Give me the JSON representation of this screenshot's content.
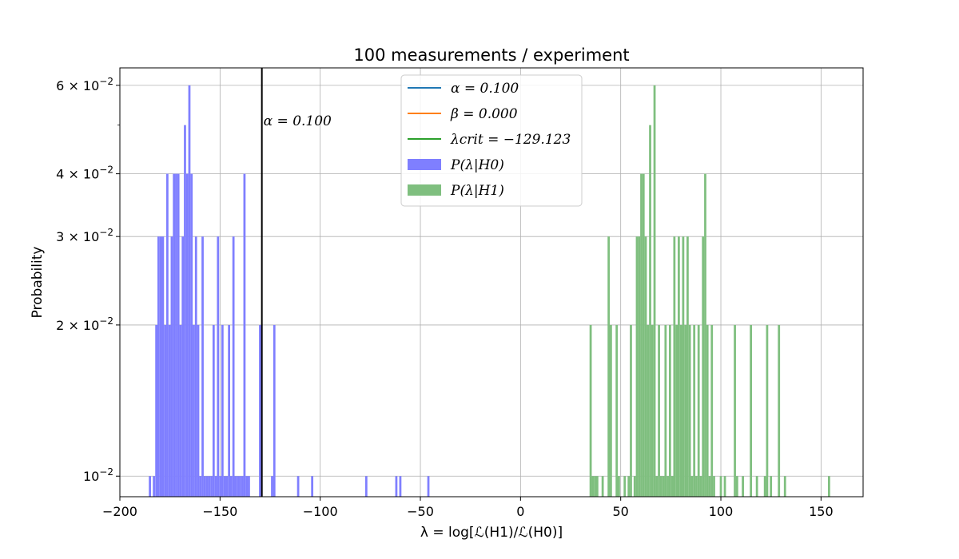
{
  "chart_data": {
    "type": "bar",
    "title": "100 measurements / experiment",
    "xlabel": "λ = log[ℒ(H1)/ℒ(H0)]",
    "ylabel": "Probability",
    "xlim": [
      -200,
      171
    ],
    "ylim": [
      0.0091,
      0.065
    ],
    "yscale": "log",
    "grid": true,
    "legend_position": "top-center",
    "x_ticks": [
      {
        "value": -200,
        "label": "−200"
      },
      {
        "value": -150,
        "label": "−150"
      },
      {
        "value": -100,
        "label": "−100"
      },
      {
        "value": -50,
        "label": "−50"
      },
      {
        "value": 0,
        "label": "0"
      },
      {
        "value": 50,
        "label": "50"
      },
      {
        "value": 100,
        "label": "100"
      },
      {
        "value": 150,
        "label": "150"
      }
    ],
    "y_ticks": [
      {
        "value": 0.01,
        "mantissa": "",
        "exp": "−2"
      },
      {
        "value": 0.02,
        "mantissa": "2",
        "exp": "−2"
      },
      {
        "value": 0.03,
        "mantissa": "3",
        "exp": "−2"
      },
      {
        "value": 0.04,
        "mantissa": "4",
        "exp": "−2"
      },
      {
        "value": 0.06,
        "mantissa": "6",
        "exp": "−2"
      }
    ],
    "bin_width": 1.1,
    "series": [
      {
        "name": "P(λ|H0)",
        "color": "#7f7fff",
        "bars": [
          {
            "x": -185.0,
            "y": 0.01
          },
          {
            "x": -183.0,
            "y": 0.01
          },
          {
            "x": -181.8,
            "y": 0.02
          },
          {
            "x": -180.7,
            "y": 0.03
          },
          {
            "x": -179.6,
            "y": 0.03
          },
          {
            "x": -178.5,
            "y": 0.03
          },
          {
            "x": -177.4,
            "y": 0.02
          },
          {
            "x": -176.3,
            "y": 0.04
          },
          {
            "x": -175.2,
            "y": 0.02
          },
          {
            "x": -174.1,
            "y": 0.03
          },
          {
            "x": -173.0,
            "y": 0.04
          },
          {
            "x": -171.9,
            "y": 0.04
          },
          {
            "x": -170.8,
            "y": 0.04
          },
          {
            "x": -169.7,
            "y": 0.02
          },
          {
            "x": -168.6,
            "y": 0.03
          },
          {
            "x": -167.5,
            "y": 0.05
          },
          {
            "x": -166.4,
            "y": 0.04
          },
          {
            "x": -165.3,
            "y": 0.06
          },
          {
            "x": -164.2,
            "y": 0.04
          },
          {
            "x": -163.1,
            "y": 0.02
          },
          {
            "x": -162.0,
            "y": 0.03
          },
          {
            "x": -160.9,
            "y": 0.02
          },
          {
            "x": -159.8,
            "y": 0.01
          },
          {
            "x": -158.7,
            "y": 0.03
          },
          {
            "x": -157.6,
            "y": 0.01
          },
          {
            "x": -156.5,
            "y": 0.01
          },
          {
            "x": -155.4,
            "y": 0.01
          },
          {
            "x": -154.3,
            "y": 0.01
          },
          {
            "x": -153.2,
            "y": 0.02
          },
          {
            "x": -152.1,
            "y": 0.01
          },
          {
            "x": -151.0,
            "y": 0.03
          },
          {
            "x": -149.9,
            "y": 0.01
          },
          {
            "x": -148.8,
            "y": 0.02
          },
          {
            "x": -147.7,
            "y": 0.01
          },
          {
            "x": -146.6,
            "y": 0.01
          },
          {
            "x": -145.5,
            "y": 0.02
          },
          {
            "x": -144.4,
            "y": 0.01
          },
          {
            "x": -143.3,
            "y": 0.03
          },
          {
            "x": -142.2,
            "y": 0.01
          },
          {
            "x": -141.1,
            "y": 0.01
          },
          {
            "x": -140.0,
            "y": 0.01
          },
          {
            "x": -138.9,
            "y": 0.01
          },
          {
            "x": -137.8,
            "y": 0.04
          },
          {
            "x": -136.7,
            "y": 0.01
          },
          {
            "x": -135.6,
            "y": 0.01
          },
          {
            "x": -130.0,
            "y": 0.02
          },
          {
            "x": -124.0,
            "y": 0.01
          },
          {
            "x": -122.9,
            "y": 0.02
          },
          {
            "x": -111.0,
            "y": 0.01
          },
          {
            "x": -104.0,
            "y": 0.01
          },
          {
            "x": -77.0,
            "y": 0.01
          },
          {
            "x": -62.0,
            "y": 0.01
          },
          {
            "x": -60.0,
            "y": 0.01
          },
          {
            "x": -46.0,
            "y": 0.01
          }
        ]
      },
      {
        "name": "P(λ|H1)",
        "color": "#7fbf7f",
        "bars": [
          {
            "x": 35.0,
            "y": 0.02
          },
          {
            "x": 36.1,
            "y": 0.01
          },
          {
            "x": 37.2,
            "y": 0.01
          },
          {
            "x": 38.3,
            "y": 0.01
          },
          {
            "x": 41.0,
            "y": 0.01
          },
          {
            "x": 44.0,
            "y": 0.03
          },
          {
            "x": 45.1,
            "y": 0.02
          },
          {
            "x": 48.0,
            "y": 0.02
          },
          {
            "x": 49.1,
            "y": 0.01
          },
          {
            "x": 52.0,
            "y": 0.01
          },
          {
            "x": 54.0,
            "y": 0.01
          },
          {
            "x": 55.1,
            "y": 0.02
          },
          {
            "x": 57.0,
            "y": 0.01
          },
          {
            "x": 58.1,
            "y": 0.03
          },
          {
            "x": 59.2,
            "y": 0.03
          },
          {
            "x": 60.3,
            "y": 0.04
          },
          {
            "x": 61.4,
            "y": 0.04
          },
          {
            "x": 62.5,
            "y": 0.03
          },
          {
            "x": 63.6,
            "y": 0.02
          },
          {
            "x": 64.7,
            "y": 0.05
          },
          {
            "x": 65.8,
            "y": 0.02
          },
          {
            "x": 66.9,
            "y": 0.06
          },
          {
            "x": 68.0,
            "y": 0.01
          },
          {
            "x": 69.1,
            "y": 0.02
          },
          {
            "x": 70.2,
            "y": 0.01
          },
          {
            "x": 71.3,
            "y": 0.01
          },
          {
            "x": 72.4,
            "y": 0.02
          },
          {
            "x": 73.5,
            "y": 0.01
          },
          {
            "x": 74.6,
            "y": 0.02
          },
          {
            "x": 75.7,
            "y": 0.01
          },
          {
            "x": 76.8,
            "y": 0.03
          },
          {
            "x": 77.9,
            "y": 0.02
          },
          {
            "x": 79.0,
            "y": 0.03
          },
          {
            "x": 80.1,
            "y": 0.02
          },
          {
            "x": 81.2,
            "y": 0.03
          },
          {
            "x": 82.3,
            "y": 0.02
          },
          {
            "x": 83.4,
            "y": 0.03
          },
          {
            "x": 84.5,
            "y": 0.02
          },
          {
            "x": 85.6,
            "y": 0.01
          },
          {
            "x": 86.7,
            "y": 0.02
          },
          {
            "x": 87.8,
            "y": 0.01
          },
          {
            "x": 88.9,
            "y": 0.02
          },
          {
            "x": 90.0,
            "y": 0.01
          },
          {
            "x": 91.1,
            "y": 0.03
          },
          {
            "x": 92.2,
            "y": 0.04
          },
          {
            "x": 93.3,
            "y": 0.02
          },
          {
            "x": 94.4,
            "y": 0.01
          },
          {
            "x": 95.5,
            "y": 0.02
          },
          {
            "x": 96.6,
            "y": 0.01
          },
          {
            "x": 100.0,
            "y": 0.01
          },
          {
            "x": 102.0,
            "y": 0.01
          },
          {
            "x": 107.0,
            "y": 0.02
          },
          {
            "x": 108.1,
            "y": 0.01
          },
          {
            "x": 111.0,
            "y": 0.01
          },
          {
            "x": 115.0,
            "y": 0.02
          },
          {
            "x": 118.0,
            "y": 0.01
          },
          {
            "x": 122.0,
            "y": 0.01
          },
          {
            "x": 123.1,
            "y": 0.02
          },
          {
            "x": 125.0,
            "y": 0.01
          },
          {
            "x": 129.0,
            "y": 0.02
          },
          {
            "x": 132.0,
            "y": 0.01
          },
          {
            "x": 154.0,
            "y": 0.01
          }
        ]
      }
    ],
    "legend": [
      {
        "kind": "line",
        "color": "#1f77b4",
        "label": "α = 0.100"
      },
      {
        "kind": "line",
        "color": "#ff7f0e",
        "label": "β = 0.000"
      },
      {
        "kind": "line",
        "color": "#2ca02c",
        "label": "λcrit = −129.123"
      },
      {
        "kind": "patch",
        "color": "#7f7fff",
        "label": "P(λ|H0)"
      },
      {
        "kind": "patch",
        "color": "#7fbf7f",
        "label": "P(λ|H1)"
      }
    ],
    "critical_line": {
      "x": -129.123,
      "color": "#000000",
      "label": "α = 0.100"
    }
  }
}
